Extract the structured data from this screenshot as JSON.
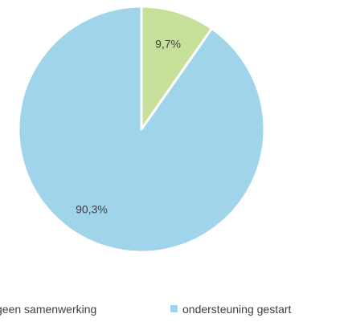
{
  "chart_data": {
    "type": "pie",
    "slices": [
      {
        "label": "geen samenwerking",
        "value": 9.7,
        "display": "9,7%",
        "color": "#c6e09a"
      },
      {
        "label": "ondersteuning gestart",
        "value": 90.3,
        "display": "90,3%",
        "color": "#9fd4ea"
      }
    ],
    "legend": {
      "items": [
        "geen samenwerking",
        "ondersteuning gestart"
      ],
      "placement": "bottom"
    }
  }
}
